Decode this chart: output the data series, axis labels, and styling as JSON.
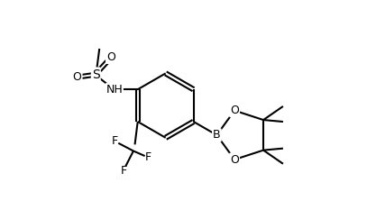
{
  "bg_color": "#ffffff",
  "line_color": "#000000",
  "lw": 1.5,
  "fig_width": 4.07,
  "fig_height": 2.33,
  "dpi": 100,
  "xlim": [
    0,
    10
  ],
  "ylim": [
    0,
    5.73
  ]
}
